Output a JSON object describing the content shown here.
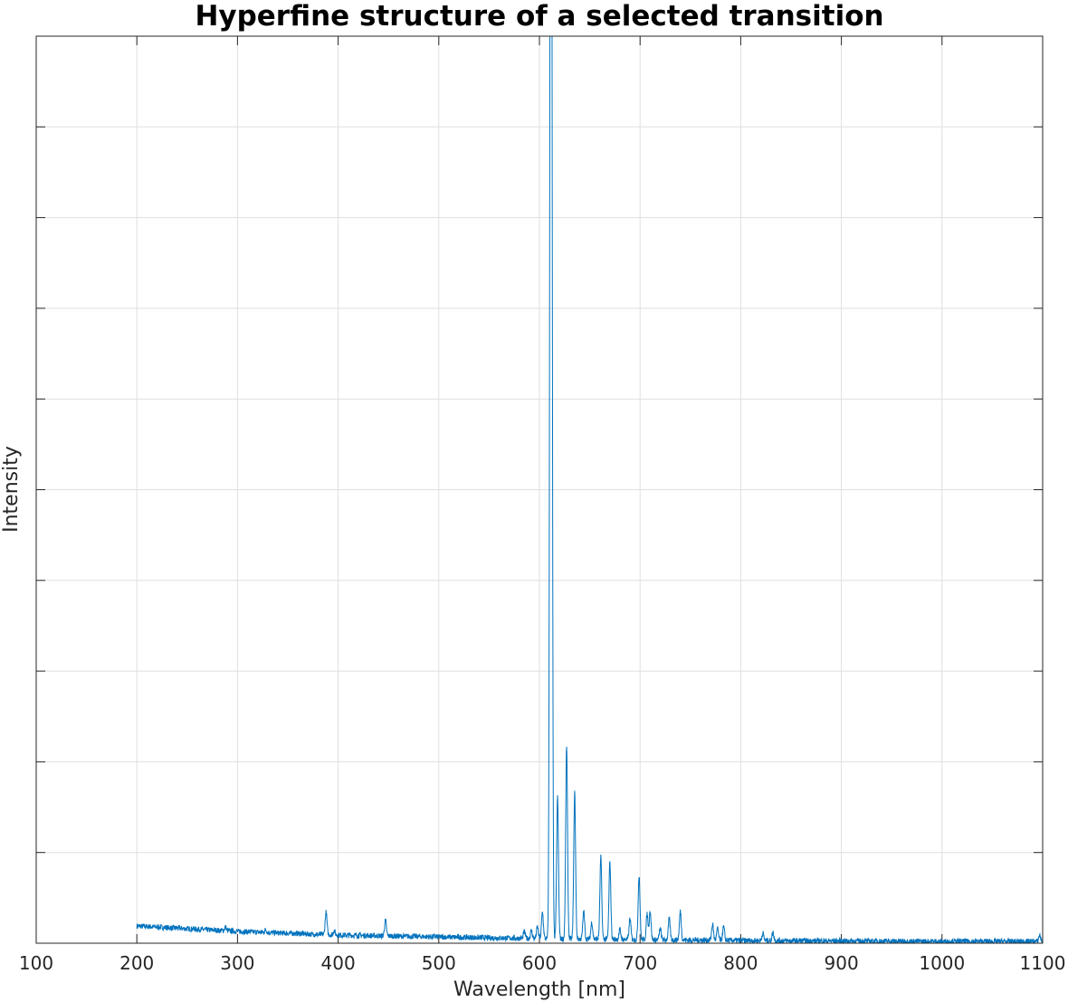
{
  "chart_data": {
    "type": "line",
    "title": "Hyperfine structure of a selected transition",
    "xlabel": "Wavelength [nm]",
    "ylabel": "Intensity",
    "xlim": [
      100,
      1100
    ],
    "ylim": [
      0,
      1
    ],
    "x_ticks": [
      100,
      200,
      300,
      400,
      500,
      600,
      700,
      800,
      900,
      1000,
      1100
    ],
    "x_tick_labels": [
      "100",
      "200",
      "300",
      "400",
      "500",
      "600",
      "700",
      "800",
      "900",
      "1000",
      "1100"
    ],
    "y_ticks": [
      0,
      0.1,
      0.2,
      0.3,
      0.4,
      0.5,
      0.6,
      0.7,
      0.8,
      0.9,
      1.0
    ],
    "y_tick_labels_shown": false,
    "grid": true,
    "line_color": "#0072BD",
    "series": [
      {
        "baseline": [
          [
            200,
            0.019
          ],
          [
            300,
            0.013
          ],
          [
            400,
            0.009
          ],
          [
            500,
            0.007
          ],
          [
            600,
            0.005
          ],
          [
            700,
            0.004
          ],
          [
            800,
            0.003
          ],
          [
            900,
            0.0025
          ],
          [
            1000,
            0.002
          ],
          [
            1100,
            0.002
          ]
        ],
        "peaks": [
          {
            "x": 288,
            "y": 0.018
          },
          {
            "x": 328,
            "y": 0.015
          },
          {
            "x": 388,
            "y": 0.034
          },
          {
            "x": 396,
            "y": 0.014
          },
          {
            "x": 447,
            "y": 0.025
          },
          {
            "x": 585,
            "y": 0.013
          },
          {
            "x": 592,
            "y": 0.014
          },
          {
            "x": 598,
            "y": 0.018
          },
          {
            "x": 603,
            "y": 0.034
          },
          {
            "x": 611,
            "y": 1.0
          },
          {
            "x": 612,
            "y": 0.945
          },
          {
            "x": 618,
            "y": 0.161
          },
          {
            "x": 627,
            "y": 0.218
          },
          {
            "x": 635,
            "y": 0.166
          },
          {
            "x": 644,
            "y": 0.035
          },
          {
            "x": 652,
            "y": 0.023
          },
          {
            "x": 661,
            "y": 0.095
          },
          {
            "x": 670,
            "y": 0.089
          },
          {
            "x": 680,
            "y": 0.015
          },
          {
            "x": 690,
            "y": 0.027
          },
          {
            "x": 699,
            "y": 0.075
          },
          {
            "x": 707,
            "y": 0.032
          },
          {
            "x": 710,
            "y": 0.036
          },
          {
            "x": 720,
            "y": 0.016
          },
          {
            "x": 729,
            "y": 0.027
          },
          {
            "x": 740,
            "y": 0.035
          },
          {
            "x": 772,
            "y": 0.021
          },
          {
            "x": 777,
            "y": 0.016
          },
          {
            "x": 783,
            "y": 0.018
          },
          {
            "x": 822,
            "y": 0.011
          },
          {
            "x": 832,
            "y": 0.012
          },
          {
            "x": 1097,
            "y": 0.009
          }
        ]
      }
    ]
  }
}
